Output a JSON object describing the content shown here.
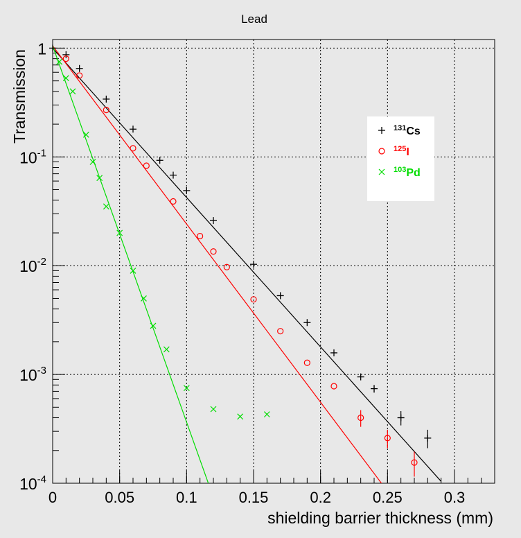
{
  "chart_data": {
    "type": "scatter",
    "title": "Lead",
    "xlabel": "shielding barrier thickness (mm)",
    "ylabel": "Transmission",
    "xlim": [
      0,
      0.33
    ],
    "ylim": [
      0.0001,
      1.2
    ],
    "yscale": "log",
    "grid": true,
    "legend_position": "top-right",
    "x_ticks": [
      {
        "value": 0,
        "label": "0"
      },
      {
        "value": 0.05,
        "label": "0.05"
      },
      {
        "value": 0.1,
        "label": "0.1"
      },
      {
        "value": 0.15,
        "label": "0.15"
      },
      {
        "value": 0.2,
        "label": "0.2"
      },
      {
        "value": 0.25,
        "label": "0.25"
      },
      {
        "value": 0.3,
        "label": "0.3"
      }
    ],
    "y_ticks": [
      {
        "value": 1,
        "base": "1",
        "exp": ""
      },
      {
        "value": 0.1,
        "base": "10",
        "exp": "-1"
      },
      {
        "value": 0.01,
        "base": "10",
        "exp": "-2"
      },
      {
        "value": 0.001,
        "base": "10",
        "exp": "-3"
      },
      {
        "value": 0.0001,
        "base": "10",
        "exp": "-4"
      }
    ],
    "series": [
      {
        "sup": "131",
        "name": "Cs",
        "marker": "plus",
        "color": "#000000",
        "x": [
          0,
          0.01,
          0.02,
          0.04,
          0.06,
          0.08,
          0.09,
          0.1,
          0.12,
          0.15,
          0.17,
          0.19,
          0.21,
          0.23,
          0.24,
          0.26,
          0.28
        ],
        "y": [
          1.0,
          0.87,
          0.65,
          0.34,
          0.18,
          0.093,
          0.068,
          0.049,
          0.026,
          0.0103,
          0.0053,
          0.003,
          0.00158,
          0.00095,
          0.00074,
          0.0004,
          0.00026
        ],
        "err": [
          0,
          0,
          0,
          0,
          0,
          0,
          0,
          0,
          0,
          0,
          0,
          0,
          0,
          0,
          6e-05,
          6e-05,
          5e-05
        ],
        "fit": {
          "x": [
            0,
            0.29
          ],
          "y": [
            1.0,
            0.000104
          ]
        }
      },
      {
        "sup": "125",
        "name": "I",
        "marker": "circle",
        "color": "#ff0000",
        "x": [
          0.01,
          0.02,
          0.04,
          0.06,
          0.07,
          0.09,
          0.11,
          0.12,
          0.13,
          0.15,
          0.17,
          0.19,
          0.21,
          0.23,
          0.25,
          0.27
        ],
        "y": [
          0.8,
          0.56,
          0.27,
          0.12,
          0.083,
          0.039,
          0.0187,
          0.0135,
          0.0097,
          0.0049,
          0.0025,
          0.00128,
          0.00078,
          0.0004,
          0.00026,
          0.000155
        ],
        "err": [
          0,
          0,
          0,
          0,
          0,
          0,
          0,
          0,
          0,
          0,
          0,
          0,
          0,
          7e-05,
          5e-05,
          4e-05
        ],
        "fit": {
          "x": [
            0,
            0.25
          ],
          "y": [
            1.05,
            8.43e-05
          ]
        }
      },
      {
        "sup": "103",
        "name": "Pd",
        "marker": "cross",
        "color": "#00dd00",
        "x": [
          0.005,
          0.01,
          0.015,
          0.025,
          0.03,
          0.035,
          0.04,
          0.05,
          0.06,
          0.068,
          0.075,
          0.085,
          0.1,
          0.12,
          0.14,
          0.16
        ],
        "y": [
          0.75,
          0.53,
          0.4,
          0.16,
          0.09,
          0.064,
          0.035,
          0.02,
          0.009,
          0.005,
          0.0028,
          0.0017,
          0.00075,
          0.00048,
          0.00041,
          0.00043
        ],
        "err": [
          0,
          0,
          0,
          0,
          0,
          0,
          0,
          0,
          0,
          0,
          0,
          0,
          0,
          0,
          0,
          0
        ],
        "fit": {
          "x": [
            0,
            0.12
          ],
          "y": [
            1.05,
            7.4e-05
          ]
        }
      }
    ]
  }
}
